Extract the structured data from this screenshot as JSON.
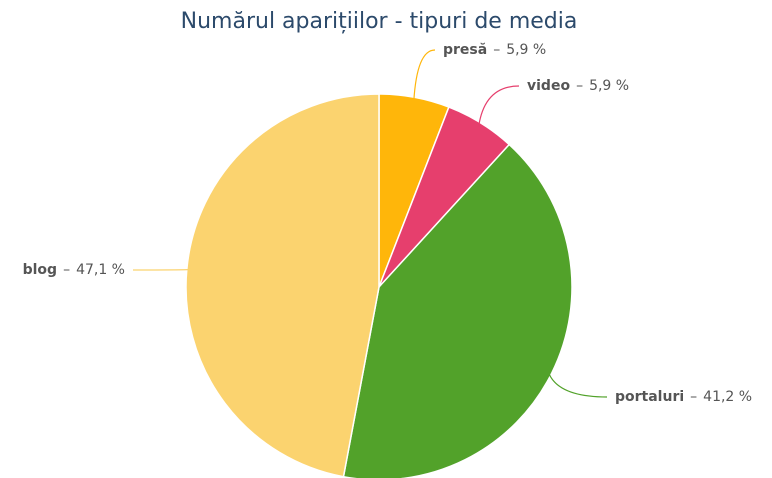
{
  "chart_data": {
    "type": "pie",
    "title": "Numărul aparițiilor - tipuri de media",
    "categories": [
      "presă",
      "video",
      "portaluri",
      "blog"
    ],
    "values": [
      5.9,
      5.9,
      41.2,
      47.1
    ],
    "value_labels": [
      "5,9 %",
      "5,9 %",
      "41,2 %",
      "47,1 %"
    ],
    "separator": "–",
    "colors": [
      "#ffb60a",
      "#e63f6d",
      "#52a22a",
      "#fbd36f"
    ]
  }
}
